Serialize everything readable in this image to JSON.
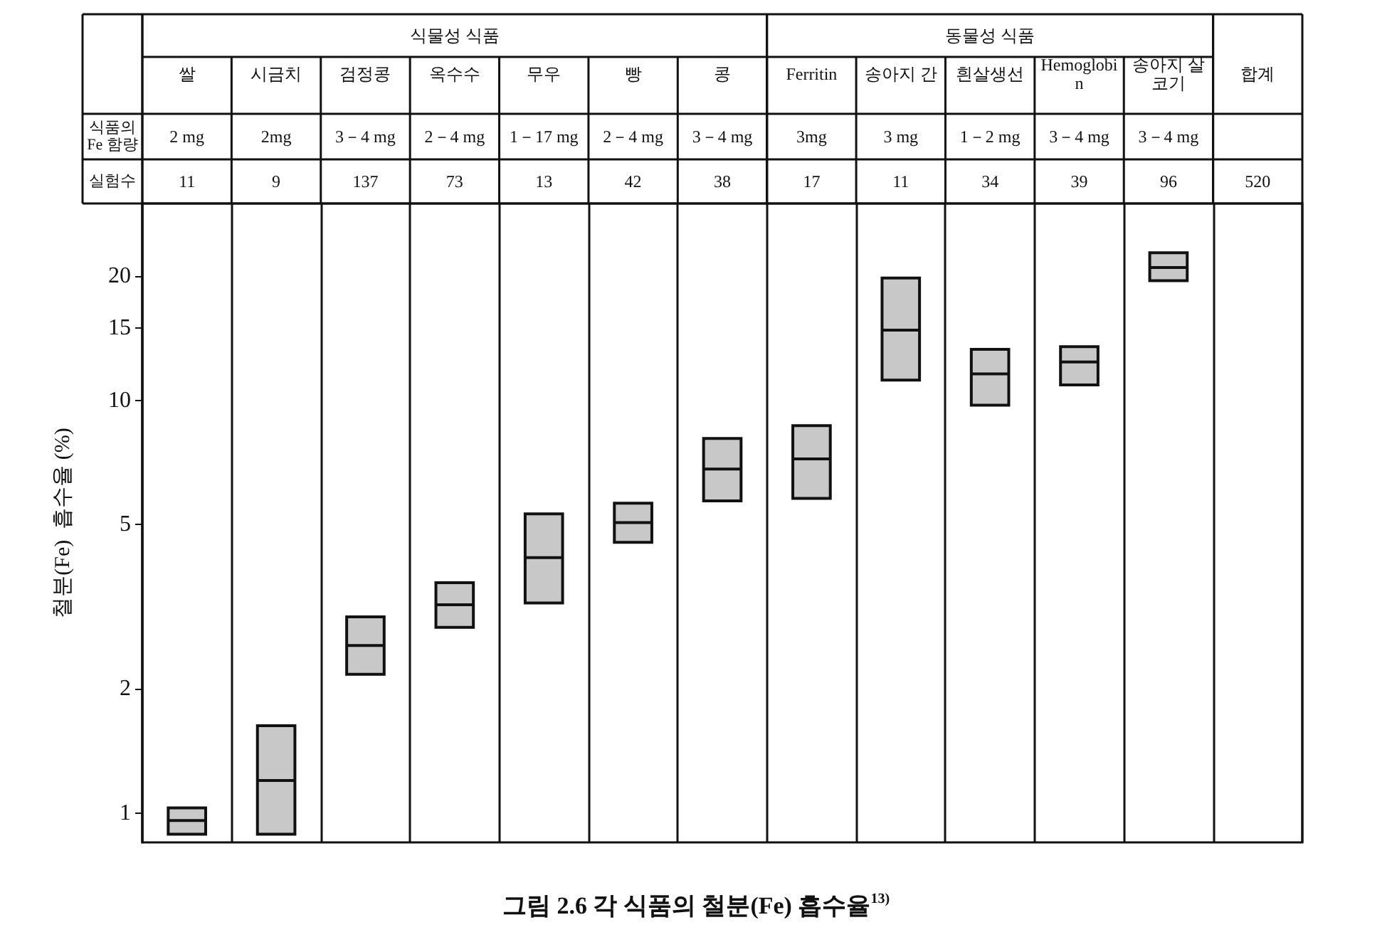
{
  "chart_data": {
    "type": "box",
    "title": "그림 2.6 각 식품의 철분(Fe) 흡수율$^{13)}$",
    "ylabel": "철분(Fe)  흡수율 (%)",
    "categories": [
      "쌀",
      "시금치",
      "검정콩",
      "옥수수",
      "무우",
      "빵",
      "콩",
      "Ferritin",
      "송아지 간",
      "흰살생선",
      "Hemoglobin",
      "송아지 살코기",
      "합계"
    ],
    "color": "#c8c8c8",
    "boxes": [
      {
        "low": 0.89,
        "q1": 0.89,
        "median": 0.96,
        "q3": 1.03,
        "high": 1.03
      },
      {
        "low": 0.89,
        "q1": 0.89,
        "median": 1.2,
        "q3": 1.63,
        "high": 1.63
      },
      {
        "low": 2.17,
        "q1": 2.17,
        "median": 2.55,
        "q3": 2.99,
        "high": 2.99
      },
      {
        "low": 2.82,
        "q1": 2.82,
        "median": 3.2,
        "q3": 3.62,
        "high": 3.62
      },
      {
        "low": 3.23,
        "q1": 3.23,
        "median": 4.16,
        "q3": 5.31,
        "high": 5.31
      },
      {
        "low": 4.53,
        "q1": 4.53,
        "median": 5.06,
        "q3": 5.64,
        "high": 5.64
      },
      {
        "low": 5.71,
        "q1": 5.71,
        "median": 6.82,
        "q3": 8.09,
        "high": 8.09
      },
      {
        "low": 5.79,
        "q1": 5.79,
        "median": 7.22,
        "q3": 8.69,
        "high": 8.69
      },
      {
        "low": 11.2,
        "q1": 11.2,
        "median": 14.8,
        "q3": 19.8,
        "high": 19.8
      },
      {
        "low": 9.74,
        "q1": 9.74,
        "median": 11.6,
        "q3": 13.3,
        "high": 13.3
      },
      {
        "low": 10.9,
        "q1": 10.9,
        "median": 12.4,
        "q3": 13.5,
        "high": 13.5
      },
      {
        "low": 19.5,
        "q1": 19.5,
        "median": 21.0,
        "q3": 22.8,
        "high": 22.8
      },
      null
    ],
    "log": true,
    "ylim": [
      0.85,
      30
    ],
    "yticks": [
      1,
      2,
      5,
      10,
      15,
      20
    ],
    "grid": "x",
    "annotations": [
      "식물성 식품",
      "동물성 식품",
      "식품의Fe 함량",
      "2 mg",
      "2mg",
      "3－4 mg",
      "2－4 mg",
      "1－17 mg",
      "2－4 mg",
      "3－4 mg",
      "3mg",
      "3 mg",
      "1－2 mg",
      "3－4 mg",
      "3－4 mg",
      "실험수",
      "11",
      "9",
      "137",
      "73",
      "13",
      "42",
      "38",
      "17",
      "11",
      "34",
      "39",
      "96",
      "520"
    ]
  }
}
